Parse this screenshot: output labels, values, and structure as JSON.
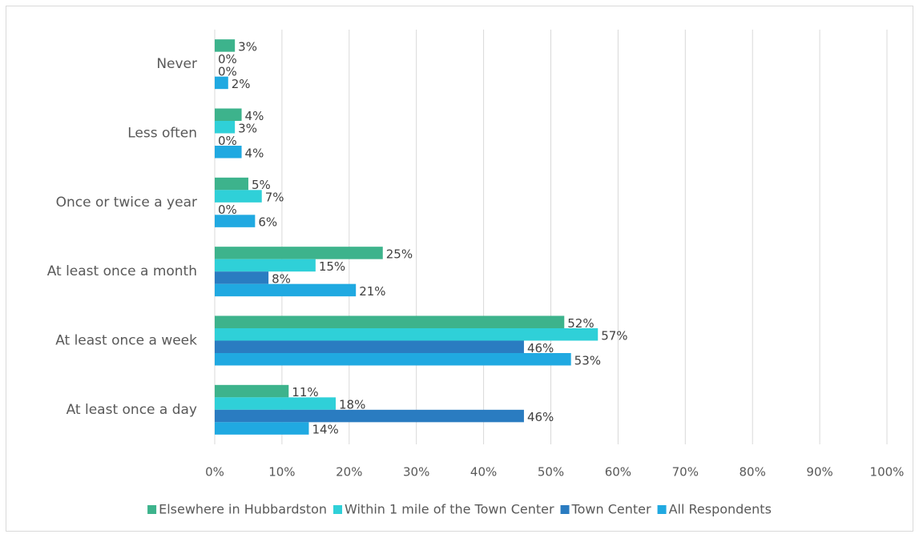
{
  "chart_data": {
    "type": "hbar",
    "categories": [
      "Never",
      "Less often",
      "Once or twice a year",
      "At least once a month",
      "At least once a week",
      "At least once a day"
    ],
    "series": [
      {
        "name": "Elsewhere in Hubbardston",
        "color": "#3db38c",
        "values": [
          3,
          4,
          5,
          25,
          52,
          11
        ],
        "value_labels": [
          "3%",
          "4%",
          "5%",
          "25%",
          "52%",
          "11%"
        ]
      },
      {
        "name": "Within 1 mile of the Town Center",
        "color": "#2fd0d8",
        "values": [
          0,
          3,
          7,
          15,
          57,
          18
        ],
        "value_labels": [
          "0%",
          "3%",
          "7%",
          "15%",
          "57%",
          "18%"
        ]
      },
      {
        "name": "Town Center",
        "color": "#2a7cc1",
        "values": [
          0,
          0,
          0,
          8,
          46,
          46
        ],
        "value_labels": [
          "0%",
          "0%",
          "0%",
          "8%",
          "46%",
          "46%"
        ]
      },
      {
        "name": "All Respondents",
        "color": "#20a9e1",
        "values": [
          2,
          4,
          6,
          21,
          53,
          14
        ],
        "value_labels": [
          "2%",
          "4%",
          "6%",
          "21%",
          "53%",
          "14%"
        ]
      }
    ],
    "xlim": [
      0,
      100
    ],
    "xticks": [
      {
        "value": 0,
        "label": "0%"
      },
      {
        "value": 10,
        "label": "10%"
      },
      {
        "value": 20,
        "label": "20%"
      },
      {
        "value": 30,
        "label": "30%"
      },
      {
        "value": 40,
        "label": "40%"
      },
      {
        "value": 50,
        "label": "50%"
      },
      {
        "value": 60,
        "label": "60%"
      },
      {
        "value": 70,
        "label": "70%"
      },
      {
        "value": 80,
        "label": "80%"
      },
      {
        "value": 90,
        "label": "90%"
      },
      {
        "value": 100,
        "label": "100%"
      }
    ],
    "grid": true,
    "legend": "bottom"
  }
}
